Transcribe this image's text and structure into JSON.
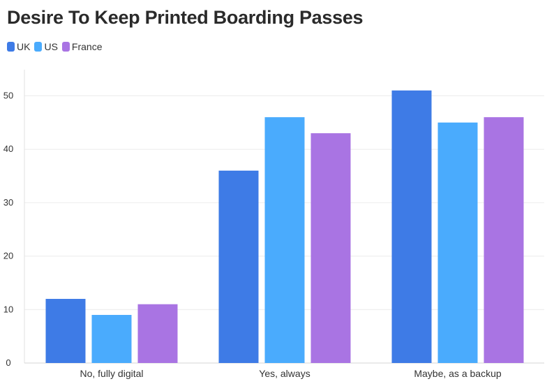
{
  "chart_data": {
    "type": "bar",
    "title": "Desire To Keep Printed Boarding Passes",
    "xlabel": "",
    "ylabel": "",
    "categories": [
      "No, fully digital",
      "Yes, always",
      "Maybe, as a backup"
    ],
    "series": [
      {
        "name": "UK",
        "color": "#3e7be6",
        "values": [
          12,
          36,
          51
        ]
      },
      {
        "name": "US",
        "color": "#4aabfd",
        "values": [
          9,
          46,
          45
        ]
      },
      {
        "name": "France",
        "color": "#a974e3",
        "values": [
          11,
          43,
          46
        ]
      }
    ],
    "yticks": [
      "0",
      "10",
      "20",
      "30",
      "40",
      "50"
    ],
    "ylim": [
      0,
      55
    ],
    "grid": true,
    "legend_position": "top-left"
  }
}
